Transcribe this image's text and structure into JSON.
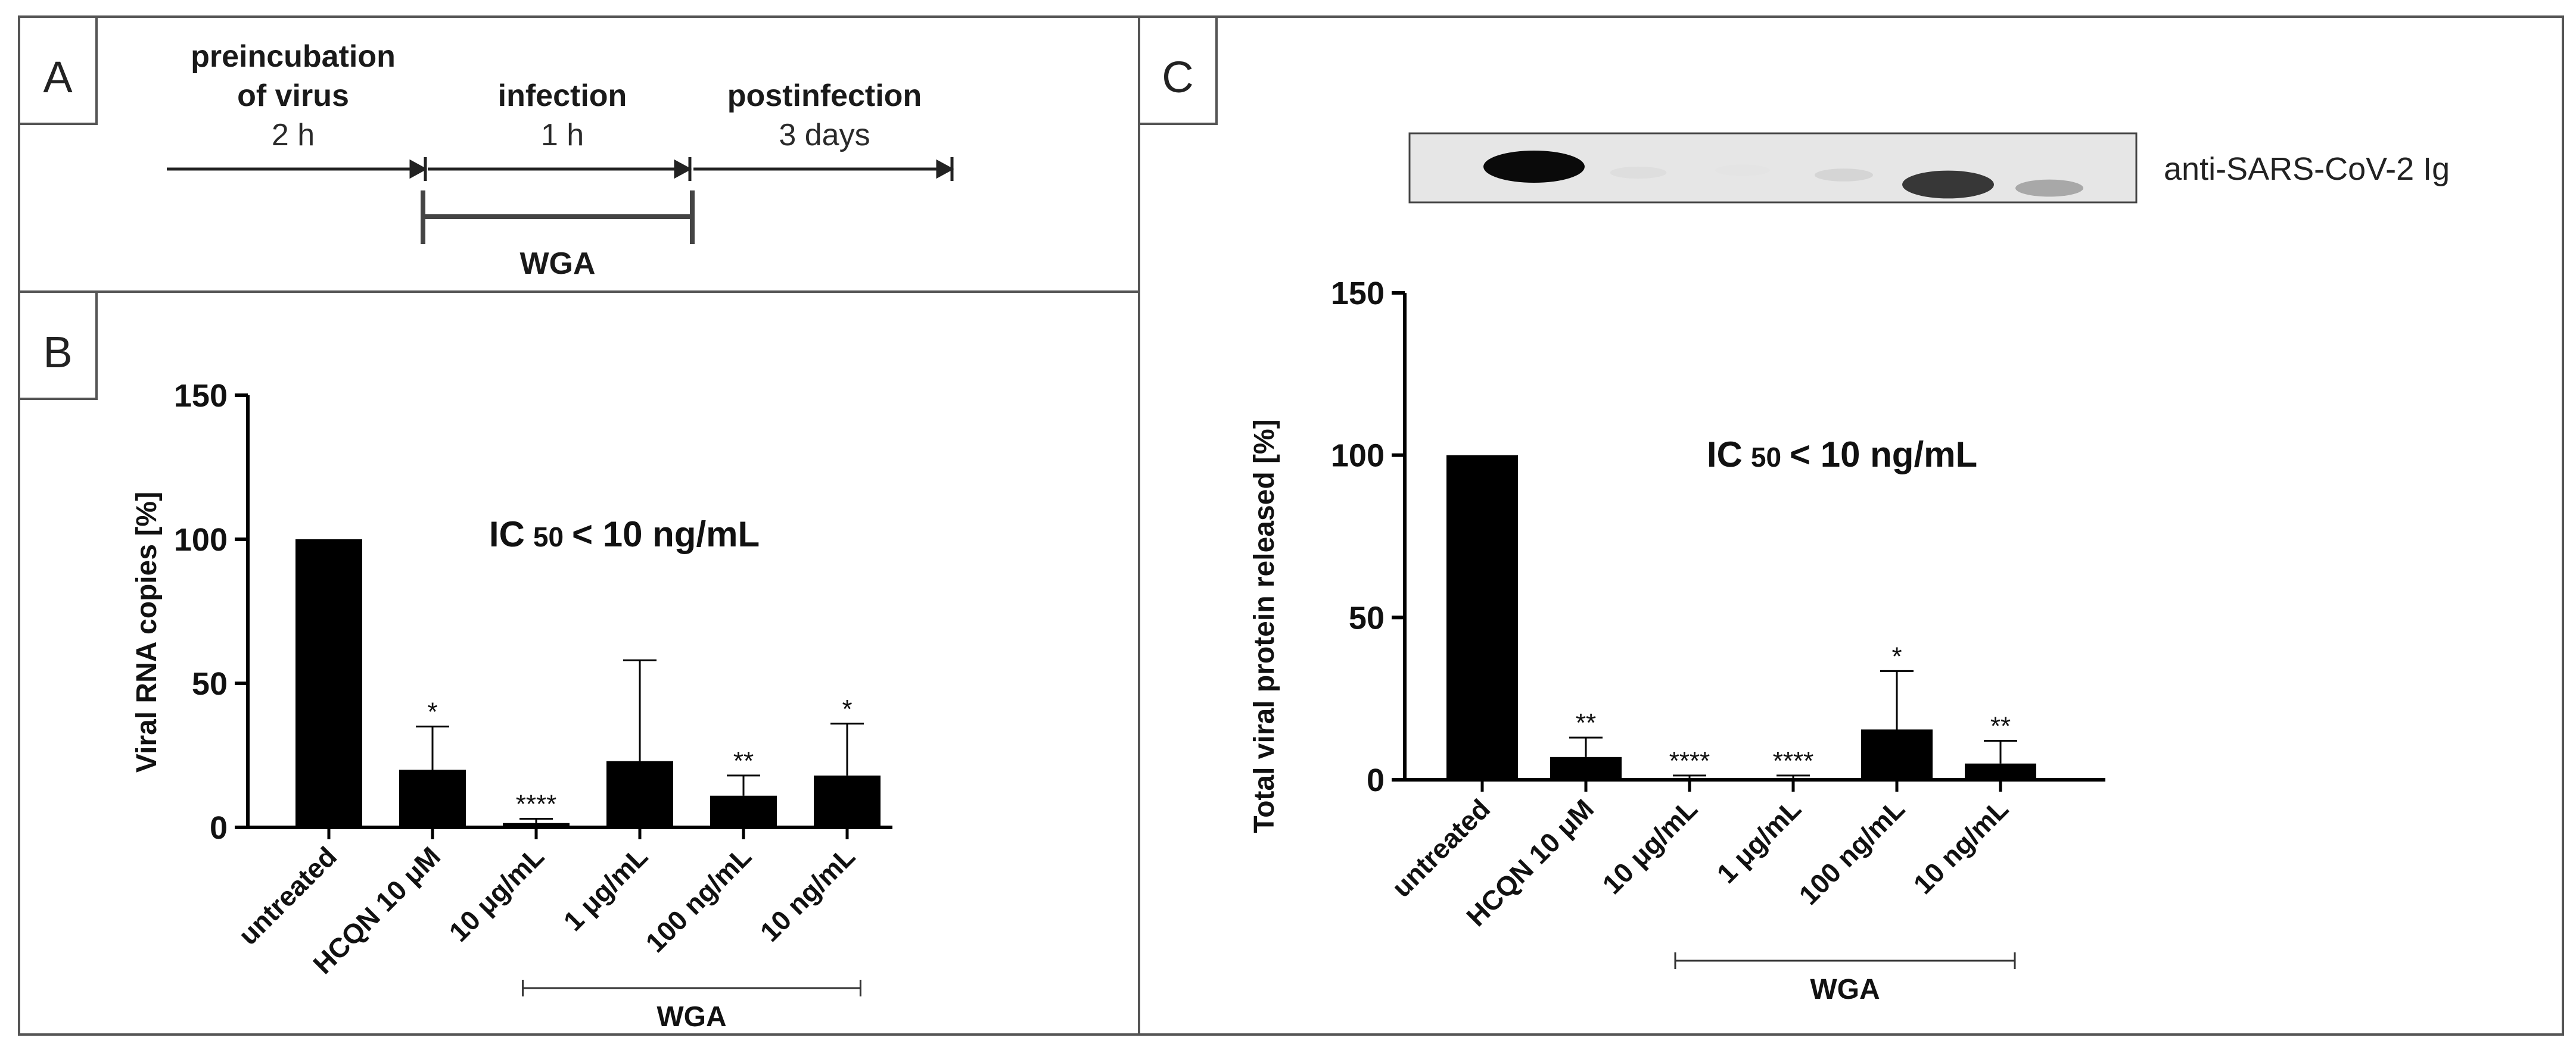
{
  "colors": {
    "bar": "#000000",
    "frame": "#555555",
    "blot_bg": "#e6e6e6"
  },
  "panel_a": {
    "letter": "A",
    "steps": [
      {
        "name_line1": "preincubation",
        "name_line2": "of virus",
        "duration": "2 h"
      },
      {
        "name_line1": "infection",
        "name_line2": "",
        "duration": "1 h"
      },
      {
        "name_line1": "postinfection",
        "name_line2": "",
        "duration": "3 days"
      }
    ],
    "treatment_label": "WGA"
  },
  "panel_c_blot": {
    "antibody_label": "anti-SARS-CoV-2 Ig",
    "band_intensities": [
      1.0,
      0.06,
      0.03,
      0.1,
      0.8,
      0.3
    ]
  },
  "chart_data": [
    {
      "panel": "B",
      "type": "bar",
      "title": "",
      "annotation": {
        "main": "IC",
        "sub": "50",
        "rest": "< 10 ng/mL"
      },
      "ylabel": "Viral RNA copies [%]",
      "xlabel": "",
      "ylim": [
        0,
        150
      ],
      "yticks": [
        0,
        50,
        100,
        150
      ],
      "categories": [
        "untreated",
        "HCQN 10 μM",
        "10 μg/mL",
        "1 μg/mL",
        "100 ng/mL",
        "10 ng/mL"
      ],
      "values": [
        100,
        20,
        1.5,
        23,
        11,
        18
      ],
      "errors": [
        0,
        15,
        1.5,
        35,
        7,
        18
      ],
      "significance": [
        "",
        "*",
        "****",
        "",
        "**",
        "*"
      ],
      "group_label": "WGA",
      "group_range": [
        2,
        5
      ]
    },
    {
      "panel": "C",
      "type": "bar",
      "title": "",
      "annotation": {
        "main": "IC",
        "sub": "50",
        "rest": "< 10 ng/mL"
      },
      "ylabel": "Total viral protein released [%]",
      "xlabel": "",
      "ylim": [
        0,
        150
      ],
      "yticks": [
        0,
        50,
        100,
        150
      ],
      "categories": [
        "untreated",
        "HCQN 10 μM",
        "10 μg/mL",
        "1 μg/mL",
        "100 ng/mL",
        "10 ng/mL"
      ],
      "values": [
        100,
        7,
        0.5,
        0.5,
        15.5,
        5
      ],
      "errors": [
        0,
        6,
        0.8,
        0.8,
        18,
        7
      ],
      "significance": [
        "",
        "**",
        "****",
        "****",
        "*",
        "**"
      ],
      "group_label": "WGA",
      "group_range": [
        2,
        5
      ]
    }
  ]
}
